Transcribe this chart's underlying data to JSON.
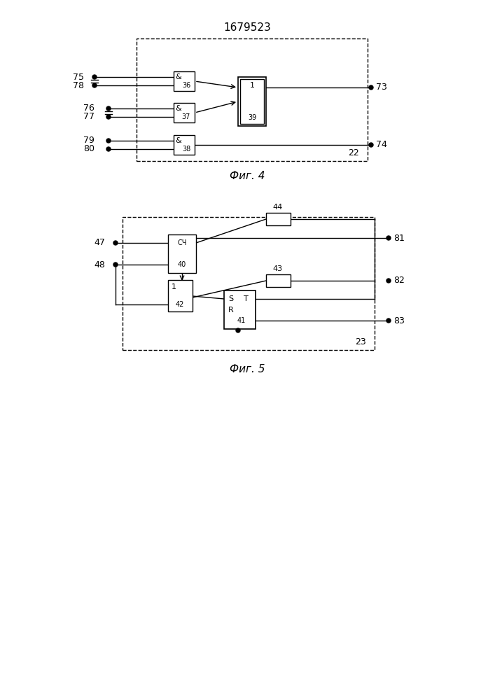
{
  "title": "1679523",
  "fig4_label": "Фиг. 4",
  "fig5_label": "Фиг. 5",
  "bg_color": "#ffffff",
  "line_color": "#000000",
  "box_color": "#ffffff",
  "font_size_label": 9,
  "font_size_block": 8,
  "font_size_title": 11
}
